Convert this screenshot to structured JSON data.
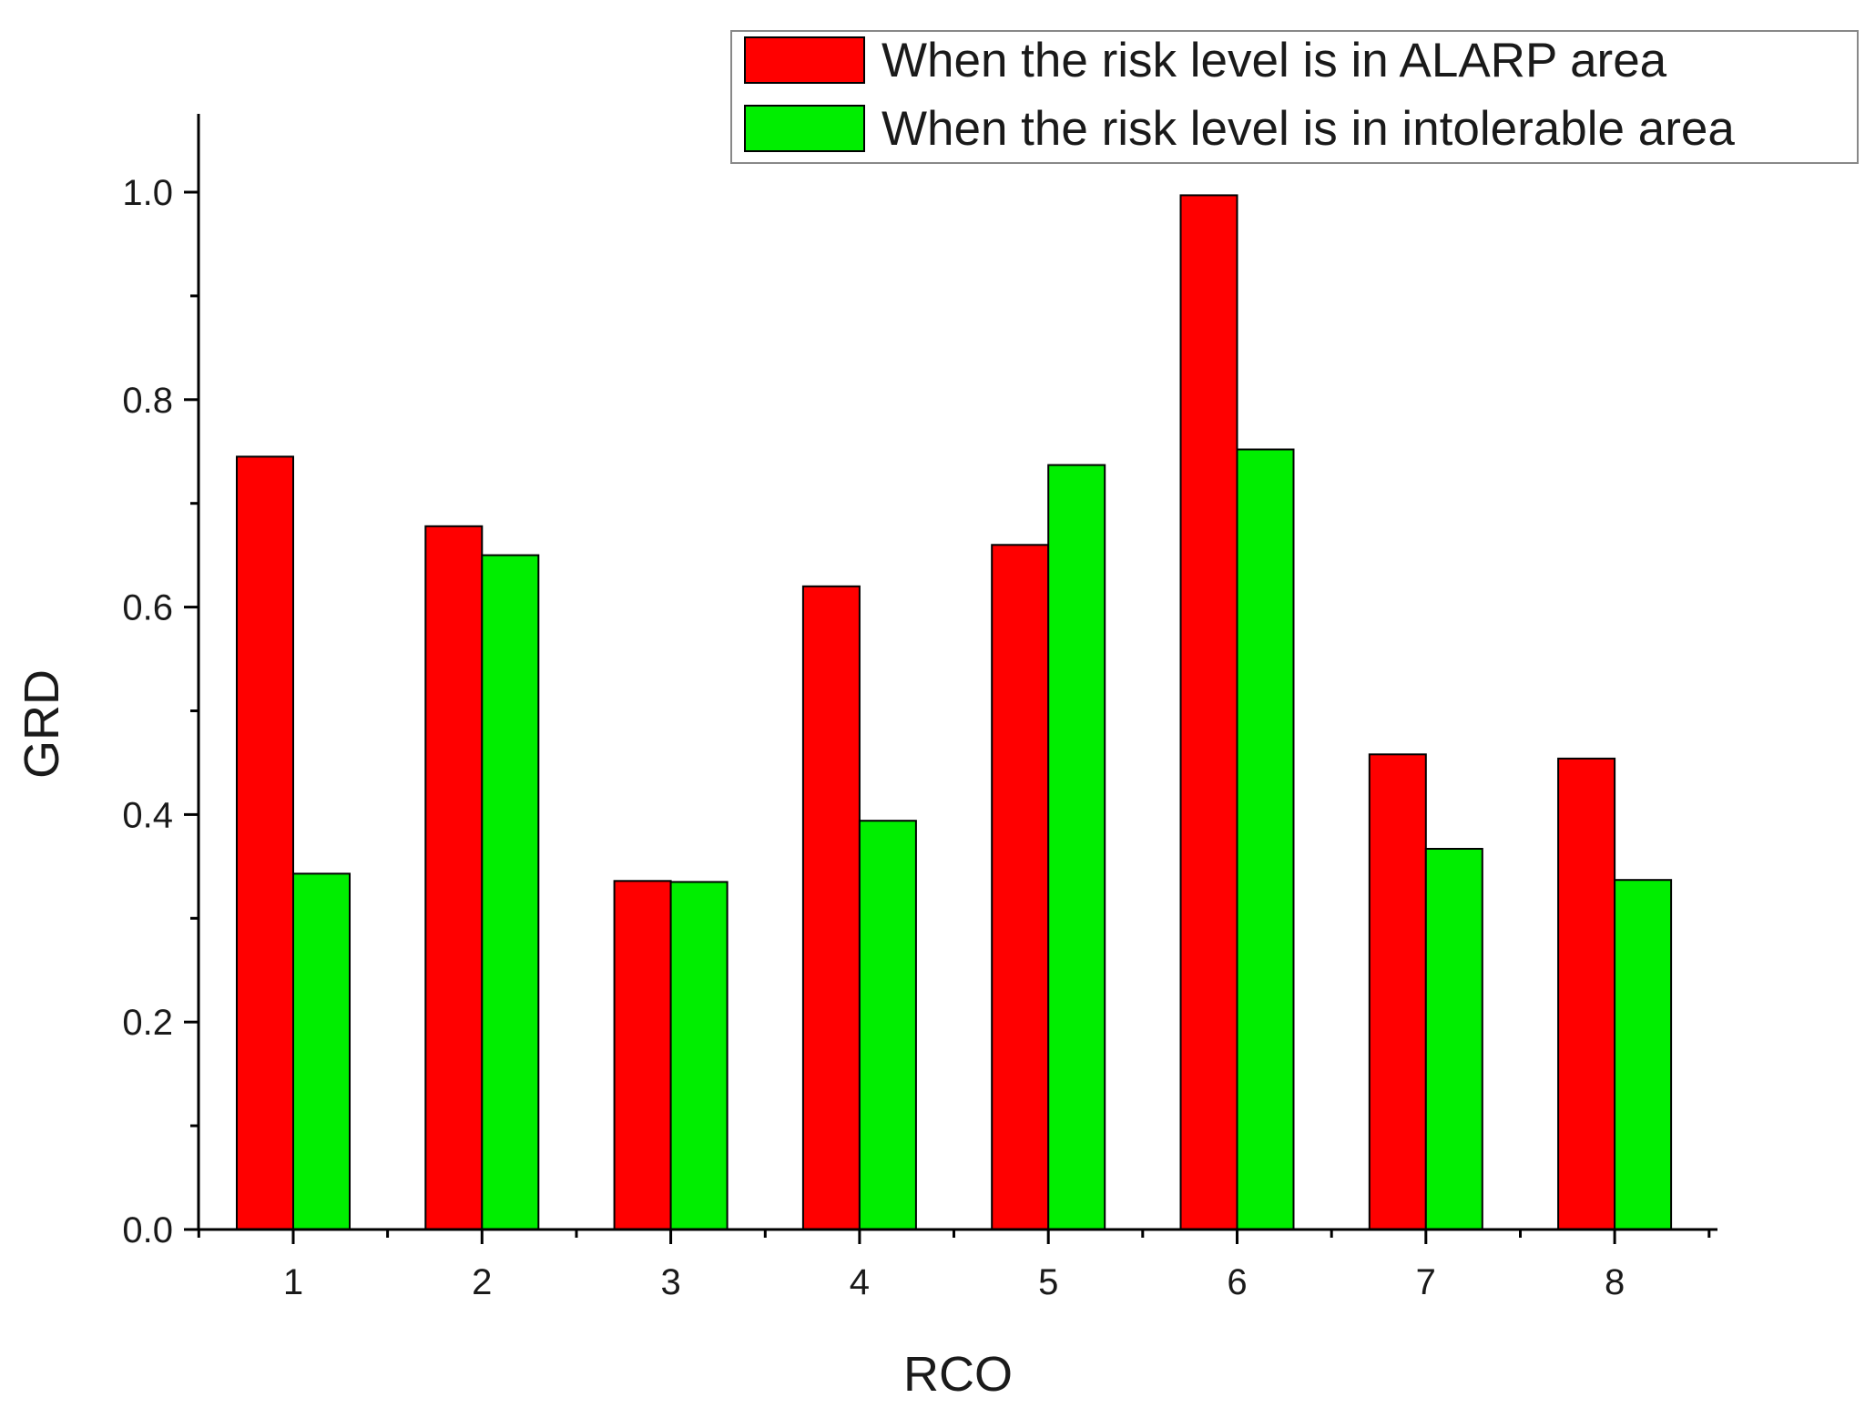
{
  "chart_data": {
    "type": "bar",
    "title": "",
    "xlabel": "RCO",
    "ylabel": "GRD",
    "categories": [
      "1",
      "2",
      "3",
      "4",
      "5",
      "6",
      "7",
      "8"
    ],
    "series": [
      {
        "name": "When the risk level is in ALARP area",
        "color": "#ff0000",
        "values": [
          0.745,
          0.678,
          0.336,
          0.62,
          0.66,
          0.997,
          0.458,
          0.454
        ]
      },
      {
        "name": "When the risk level is in intolerable area",
        "color": "#00ee00",
        "values": [
          0.343,
          0.65,
          0.335,
          0.394,
          0.737,
          0.752,
          0.367,
          0.337
        ]
      }
    ],
    "ylim": [
      0,
      1.07
    ],
    "yticks": [
      "0.0",
      "0.2",
      "0.4",
      "0.6",
      "0.8",
      "1.0"
    ],
    "grid": false,
    "legend_position": "top-right"
  }
}
